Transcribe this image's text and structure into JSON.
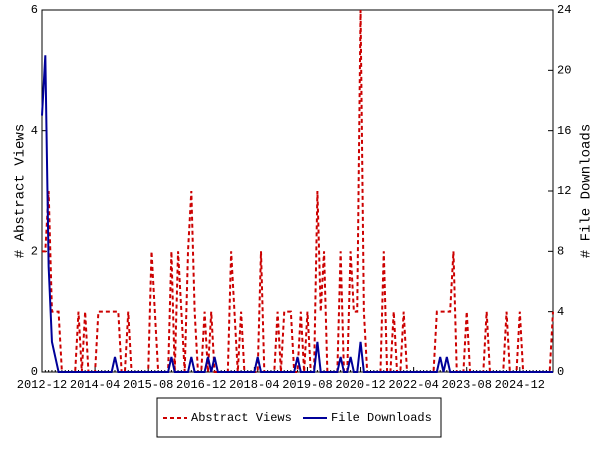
{
  "chart_data": {
    "type": "line",
    "x": [
      "2012-12",
      "2013-01",
      "2013-02",
      "2013-03",
      "2013-04",
      "2013-05",
      "2013-06",
      "2013-07",
      "2013-08",
      "2013-09",
      "2013-10",
      "2013-11",
      "2013-12",
      "2014-01",
      "2014-02",
      "2014-03",
      "2014-04",
      "2014-05",
      "2014-06",
      "2014-07",
      "2014-08",
      "2014-09",
      "2014-10",
      "2014-11",
      "2014-12",
      "2015-01",
      "2015-02",
      "2015-03",
      "2015-04",
      "2015-05",
      "2015-06",
      "2015-07",
      "2015-08",
      "2015-09",
      "2015-10",
      "2015-11",
      "2015-12",
      "2016-01",
      "2016-02",
      "2016-03",
      "2016-04",
      "2016-05",
      "2016-06",
      "2016-07",
      "2016-08",
      "2016-09",
      "2016-10",
      "2016-11",
      "2016-12",
      "2017-01",
      "2017-02",
      "2017-03",
      "2017-04",
      "2017-05",
      "2017-06",
      "2017-07",
      "2017-08",
      "2017-09",
      "2017-10",
      "2017-11",
      "2017-12",
      "2018-01",
      "2018-02",
      "2018-03",
      "2018-04",
      "2018-05",
      "2018-06",
      "2018-07",
      "2018-08",
      "2018-09",
      "2018-10",
      "2018-11",
      "2018-12",
      "2019-01",
      "2019-02",
      "2019-03",
      "2019-04",
      "2019-05",
      "2019-06",
      "2019-07",
      "2019-08",
      "2019-09",
      "2019-10",
      "2019-11",
      "2019-12",
      "2020-01",
      "2020-02",
      "2020-03",
      "2020-04",
      "2020-05",
      "2020-06",
      "2020-07",
      "2020-08",
      "2020-09",
      "2020-10",
      "2020-11",
      "2020-12",
      "2021-01",
      "2021-02",
      "2021-03",
      "2021-04",
      "2021-05",
      "2021-06",
      "2021-07",
      "2021-08",
      "2021-09",
      "2021-10",
      "2021-11",
      "2021-12",
      "2022-01",
      "2022-02",
      "2022-03",
      "2022-04",
      "2022-05",
      "2022-06",
      "2022-07",
      "2022-08",
      "2022-09",
      "2022-10",
      "2022-11",
      "2022-12",
      "2023-01",
      "2023-02",
      "2023-03",
      "2023-04",
      "2023-05",
      "2023-06",
      "2023-07",
      "2023-08",
      "2023-09",
      "2023-10",
      "2023-11",
      "2023-12",
      "2024-01",
      "2024-02",
      "2024-03",
      "2024-04",
      "2024-05",
      "2024-06",
      "2024-07",
      "2024-08",
      "2024-09",
      "2024-10",
      "2024-11",
      "2024-12",
      "2025-01",
      "2025-02",
      "2025-03",
      "2025-04",
      "2025-05",
      "2025-06",
      "2025-07",
      "2025-08",
      "2025-09",
      "2025-10"
    ],
    "xticks": [
      "2012-12",
      "2014-04",
      "2015-08",
      "2016-12",
      "2018-04",
      "2019-08",
      "2020-12",
      "2022-04",
      "2023-08",
      "2024-12"
    ],
    "ylabel": "# Abstract Views",
    "y2label": "# File Downloads",
    "ylim": [
      0,
      6
    ],
    "yticks": [
      0,
      2,
      4,
      6
    ],
    "y2lim": [
      0,
      24
    ],
    "y2ticks": [
      0,
      4,
      8,
      12,
      16,
      20,
      24
    ],
    "series": [
      {
        "name": "Abstract Views",
        "color": "#cc0000",
        "dashed": true,
        "values": [
          2,
          2,
          3,
          1,
          1,
          1,
          0,
          0,
          0,
          0,
          0,
          1,
          0,
          1,
          0,
          0,
          0,
          1,
          1,
          1,
          1,
          1,
          1,
          1,
          0,
          0,
          1,
          0,
          0,
          0,
          0,
          0,
          0,
          2,
          1,
          0,
          0,
          0,
          0,
          2,
          0,
          2,
          1,
          0,
          2,
          3,
          1,
          0,
          0,
          1,
          0,
          1,
          0,
          0,
          0,
          0,
          0,
          2,
          1,
          0,
          1,
          0,
          0,
          0,
          0,
          0,
          2,
          0,
          0,
          0,
          0,
          1,
          0,
          1,
          1,
          1,
          0,
          0,
          1,
          0,
          1,
          0,
          0,
          3,
          1,
          2,
          0,
          0,
          0,
          0,
          2,
          0,
          0,
          2,
          1,
          1,
          6,
          1,
          0,
          0,
          0,
          0,
          0,
          2,
          0,
          0,
          1,
          0,
          0,
          1,
          0,
          0,
          0,
          0,
          0,
          0,
          0,
          0,
          0,
          1,
          1,
          1,
          1,
          1,
          2,
          0,
          0,
          0,
          1,
          0,
          0,
          0,
          0,
          0,
          1,
          0,
          0,
          0,
          0,
          0,
          1,
          0,
          0,
          0,
          1,
          0,
          0,
          0,
          0,
          0,
          0,
          0,
          0,
          0,
          1
        ]
      },
      {
        "name": "File Downloads",
        "color": "#000099",
        "dashed": false,
        "axis": "y2",
        "values": [
          17,
          21,
          7,
          2,
          1,
          0,
          0,
          0,
          0,
          0,
          0,
          0,
          0,
          0,
          0,
          0,
          0,
          0,
          0,
          0,
          0,
          0,
          1,
          0,
          0,
          0,
          0,
          0,
          0,
          0,
          0,
          0,
          0,
          0,
          0,
          0,
          0,
          0,
          0,
          1,
          0,
          0,
          0,
          0,
          0,
          1,
          0,
          0,
          0,
          0,
          1,
          0,
          1,
          0,
          0,
          0,
          0,
          0,
          0,
          0,
          0,
          0,
          0,
          0,
          0,
          1,
          0,
          0,
          0,
          0,
          0,
          0,
          0,
          0,
          0,
          0,
          0,
          1,
          0,
          0,
          0,
          0,
          0,
          2,
          0,
          0,
          0,
          0,
          0,
          0,
          1,
          0,
          0,
          1,
          0,
          0,
          2,
          0,
          0,
          0,
          0,
          0,
          0,
          0,
          0,
          0,
          0,
          0,
          0,
          0,
          0,
          0,
          0,
          0,
          0,
          0,
          0,
          0,
          0,
          0,
          1,
          0,
          1,
          0,
          0,
          0,
          0,
          0,
          0,
          0,
          0,
          0,
          0,
          0,
          0,
          0,
          0,
          0,
          0,
          0,
          0,
          0,
          0,
          0,
          0,
          0,
          0,
          0,
          0,
          0,
          0,
          0,
          0,
          0,
          0
        ]
      }
    ]
  }
}
